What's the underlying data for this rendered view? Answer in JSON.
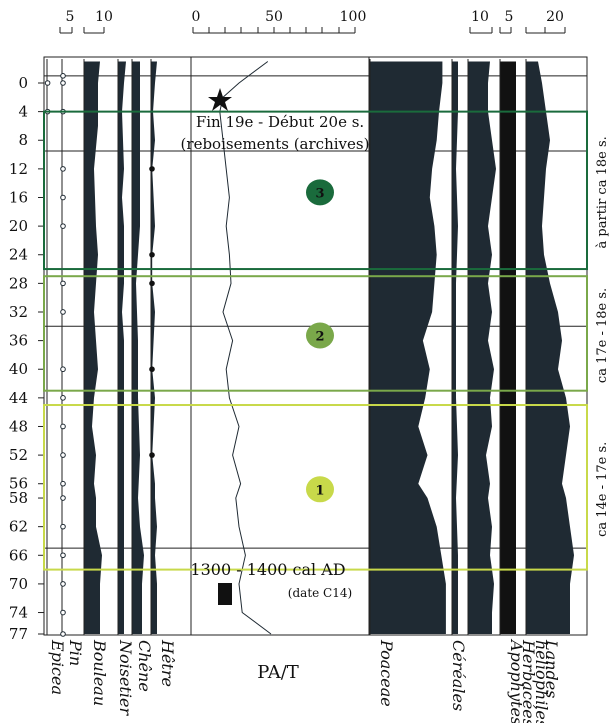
{
  "chart_data": {
    "type": "area",
    "title": "",
    "y_axis": {
      "label": "",
      "ticks": [
        0,
        4,
        8,
        12,
        16,
        20,
        24,
        28,
        32,
        36,
        40,
        44,
        48,
        52,
        56,
        58,
        62,
        66,
        70,
        74,
        77
      ],
      "range": [
        -3,
        77
      ],
      "reversed": true
    },
    "scale_bars": [
      {
        "labels": [
          "5"
        ],
        "over": "Pin"
      },
      {
        "labels": [
          "10"
        ],
        "over": "Bouleau"
      },
      {
        "labels": [
          "0",
          "50",
          "100"
        ],
        "over": "PA/T"
      },
      {
        "labels": [
          "10"
        ],
        "over": "Apophytes"
      },
      {
        "labels": [
          "5"
        ],
        "over": "Herbacées héliophiles"
      },
      {
        "labels": [
          "20"
        ],
        "over": "Landes"
      }
    ],
    "taxa": [
      {
        "name": "Epicea",
        "style": "dots",
        "color": "#1f2a33",
        "depths": [
          0,
          4
        ],
        "values": [
          0.3,
          0.3
        ]
      },
      {
        "name": "Pin",
        "style": "dots",
        "color": "#1f2a33",
        "depths": [
          -1,
          0,
          4,
          12,
          16,
          20,
          28,
          32,
          40,
          44,
          48,
          52,
          56,
          58,
          62,
          66,
          70,
          74,
          77
        ],
        "values": [
          0.5,
          0.5,
          0.5,
          0.5,
          0.5,
          0.5,
          0.5,
          0.5,
          0.5,
          0.5,
          0.5,
          0.5,
          0.5,
          0.5,
          0.5,
          0.5,
          0.5,
          0.5,
          0.5
        ]
      },
      {
        "name": "Bouleau",
        "style": "area",
        "color": "#1f2a33",
        "depths": [
          -3,
          0,
          6,
          12,
          20,
          24,
          28,
          32,
          40,
          44,
          48,
          52,
          56,
          58,
          62,
          66,
          70,
          74,
          77
        ],
        "values": [
          8,
          7,
          7,
          5,
          6,
          7,
          6,
          5,
          7,
          5,
          4,
          6,
          5,
          6,
          6,
          9,
          8,
          8,
          8
        ]
      },
      {
        "name": "Noisetier",
        "style": "area",
        "color": "#1f2a33",
        "depths": [
          -3,
          0,
          4,
          12,
          16,
          20,
          24,
          28,
          32,
          36,
          40,
          44,
          48,
          52,
          56,
          60,
          66,
          70,
          74,
          77
        ],
        "values": [
          4,
          3,
          2,
          3,
          2,
          3,
          3,
          3,
          2,
          3,
          3,
          3,
          3,
          3,
          3,
          3,
          3,
          3,
          3,
          3
        ]
      },
      {
        "name": "Chêne",
        "style": "area",
        "color": "#1f2a33",
        "depths": [
          -3,
          0,
          12,
          20,
          28,
          36,
          44,
          52,
          58,
          62,
          66,
          70,
          74,
          77
        ],
        "values": [
          4,
          4,
          4,
          4,
          2,
          3,
          3,
          4,
          3,
          4,
          6,
          5,
          5,
          5
        ]
      },
      {
        "name": "Hêtre",
        "style": "area",
        "color": "#1f2a33",
        "depths": [
          -3,
          0,
          4,
          8,
          12,
          20,
          24,
          28,
          32,
          40,
          44,
          52,
          56,
          58,
          62,
          66,
          70,
          74,
          77
        ],
        "values": [
          3,
          2,
          1,
          2,
          0.6,
          2,
          0.6,
          0.6,
          2,
          0.6,
          2,
          0.6,
          2,
          2,
          3,
          2,
          3,
          3,
          3
        ]
      },
      {
        "name": "PA/T",
        "style": "line",
        "color": "#1f2a33",
        "depths": [
          -3,
          0,
          2,
          4,
          8,
          12,
          16,
          20,
          24,
          28,
          32,
          36,
          40,
          44,
          48,
          52,
          56,
          58,
          62,
          66,
          70,
          74,
          77
        ],
        "values": [
          48,
          30,
          20,
          18,
          20,
          22,
          24,
          22,
          24,
          25,
          20,
          26,
          22,
          24,
          30,
          26,
          31,
          28,
          30,
          34,
          30,
          32,
          50
        ]
      },
      {
        "name": "Poaceae",
        "style": "area",
        "color": "#1f2a33",
        "depths": [
          -3,
          0,
          4,
          8,
          12,
          16,
          20,
          24,
          28,
          32,
          36,
          40,
          44,
          48,
          52,
          56,
          58,
          62,
          66,
          70,
          74,
          77
        ],
        "values": [
          63,
          63,
          60,
          58,
          54,
          52,
          56,
          58,
          56,
          54,
          46,
          52,
          48,
          42,
          50,
          42,
          50,
          58,
          62,
          66,
          66,
          66
        ]
      },
      {
        "name": "Céréales",
        "style": "area",
        "color": "#1f2a33",
        "depths": [
          -3,
          0,
          4,
          12,
          20,
          28,
          36,
          44,
          52,
          58,
          66,
          70,
          74,
          77
        ],
        "values": [
          3,
          3,
          3,
          2,
          3,
          2,
          2,
          2,
          3,
          2,
          3,
          3,
          3,
          3
        ]
      },
      {
        "name": "Apophytes",
        "style": "area",
        "color": "#1f2a33",
        "depths": [
          -3,
          0,
          4,
          8,
          12,
          16,
          20,
          24,
          28,
          32,
          36,
          40,
          44,
          48,
          52,
          56,
          58,
          62,
          66,
          70,
          74,
          77
        ],
        "values": [
          11,
          10,
          10,
          12,
          14,
          12,
          10,
          12,
          10,
          12,
          10,
          13,
          11,
          12,
          9,
          11,
          10,
          12,
          11,
          13,
          12,
          12
        ]
      },
      {
        "name": "Herbacées héliophiles",
        "style": "area",
        "color": "#111111",
        "depths": [
          -3,
          0,
          4,
          12,
          20,
          28,
          36,
          44,
          52,
          58,
          66,
          70,
          74,
          77
        ],
        "values": [
          8,
          8,
          8,
          8,
          8,
          8,
          8,
          8,
          8,
          8,
          8,
          8,
          8,
          8
        ]
      },
      {
        "name": "Landes",
        "style": "area",
        "color": "#1f2a33",
        "depths": [
          -3,
          0,
          4,
          8,
          12,
          16,
          20,
          24,
          28,
          32,
          36,
          40,
          44,
          48,
          52,
          56,
          58,
          62,
          66,
          70,
          74,
          77
        ],
        "values": [
          6,
          8,
          10,
          12,
          10,
          9,
          8,
          9,
          12,
          16,
          18,
          16,
          20,
          22,
          20,
          18,
          20,
          22,
          24,
          22,
          22,
          22
        ]
      }
    ],
    "labels": [
      "Epicea",
      "Pin",
      "Bouleau",
      "Noisetier",
      "Chêne",
      "Hêtre",
      "PA/T",
      "Poaceae",
      "Céréales",
      "Apophytes",
      "Herbacées",
      "héliophiles",
      "Landes"
    ],
    "zones": [
      {
        "id": "3",
        "from": 4,
        "to": 26,
        "color": "#1a6b3c",
        "note": "à partir ca 18e s."
      },
      {
        "id": "2",
        "from": 27,
        "to": 43,
        "color": "#7aa84a",
        "note": "ca 17e - 18e s."
      },
      {
        "id": "1",
        "from": 45,
        "to": 68,
        "color": "#c8d94a",
        "note": "ca 14e - 17e s."
      }
    ],
    "annotations": {
      "reforestation_line1": "Fin 19e - Début 20e s.",
      "reforestation_line2": "(reboisements (archives)",
      "dating_line1": "1300 - 1400 cal AD",
      "dating_line2": "(date C14)"
    },
    "horizontal_lines_depths": [
      -1,
      9.5,
      34,
      65
    ]
  }
}
